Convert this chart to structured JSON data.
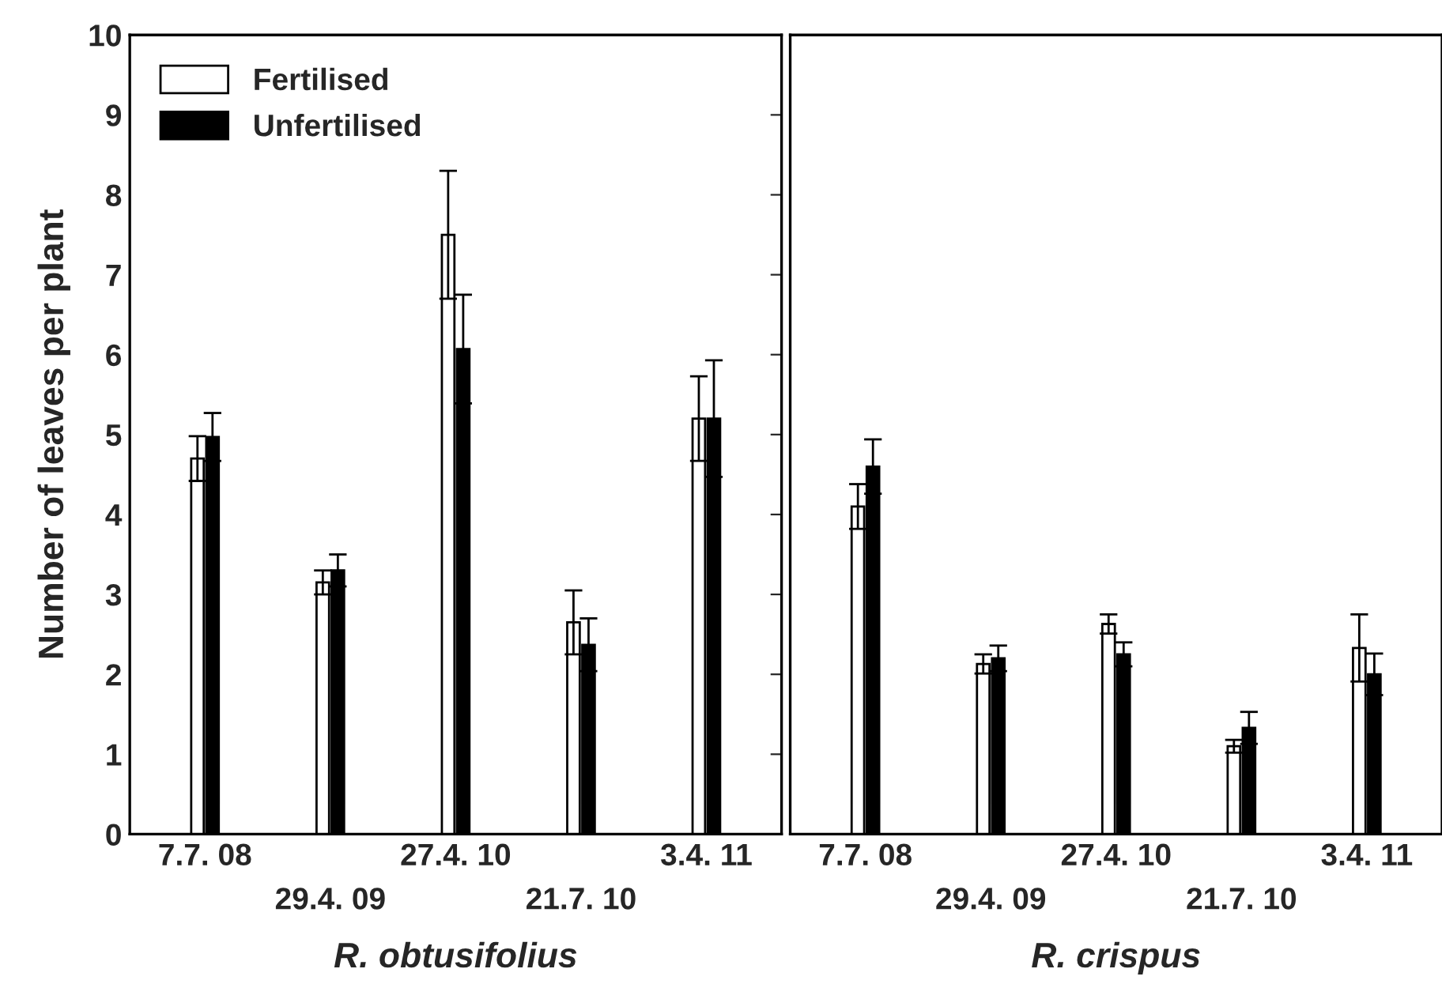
{
  "chart_data": [
    {
      "type": "bar",
      "categories": [
        "7.7. 08",
        "29.4. 09",
        "27.4. 10",
        "21.7. 10",
        "3.4. 11"
      ],
      "xlabel": "R. obtusifolius",
      "ylabel": "Number of leaves per plant",
      "ylim": [
        0,
        10
      ],
      "yticks": [
        0,
        1,
        2,
        3,
        4,
        5,
        6,
        7,
        8,
        9,
        10
      ],
      "grid": false,
      "legend": "top left",
      "series": [
        {
          "name": "Fertilised",
          "color": "#ffffff",
          "values": [
            4.7,
            3.15,
            7.5,
            2.65,
            5.2
          ],
          "errors": [
            0.28,
            0.15,
            0.8,
            0.4,
            0.53
          ]
        },
        {
          "name": "Unfertilised",
          "color": "#000000",
          "values": [
            4.97,
            3.3,
            6.07,
            2.37,
            5.2
          ],
          "errors": [
            0.3,
            0.2,
            0.68,
            0.33,
            0.73
          ]
        }
      ]
    },
    {
      "type": "bar",
      "categories": [
        "7.7. 08",
        "29.4. 09",
        "27.4. 10",
        "21.7. 10",
        "3.4. 11"
      ],
      "xlabel": "R. crispus",
      "ylim": [
        0,
        10
      ],
      "yticks": [
        0,
        1,
        2,
        3,
        4,
        5,
        6,
        7,
        8,
        9,
        10
      ],
      "grid": false,
      "tick_labels": "x",
      "series": [
        {
          "color": "#ffffff",
          "values": [
            4.1,
            2.13,
            2.63,
            1.1,
            2.33
          ],
          "errors": [
            0.28,
            0.12,
            0.12,
            0.08,
            0.42
          ]
        },
        {
          "color": "#000000",
          "values": [
            4.6,
            2.2,
            2.25,
            1.33,
            2.0
          ],
          "errors": [
            0.34,
            0.16,
            0.15,
            0.2,
            0.26
          ]
        }
      ]
    }
  ]
}
